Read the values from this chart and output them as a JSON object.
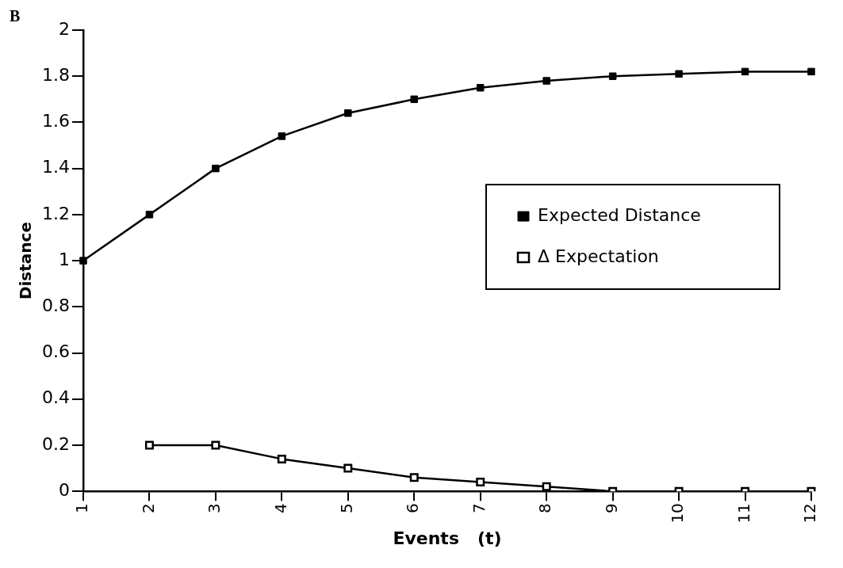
{
  "chart_data": {
    "type": "line",
    "xlabel": "Events   (t)",
    "ylabel": "Distance",
    "annotations": [
      "B"
    ],
    "categories": [
      "1",
      "2",
      "3",
      "4",
      "5",
      "6",
      "7",
      "8",
      "9",
      "10",
      "11",
      "12"
    ],
    "series": [
      {
        "name": "Expected Distance",
        "color": "#000000",
        "marker": "square",
        "values": [
          1.0,
          1.2,
          1.4,
          1.54,
          1.64,
          1.7,
          1.75,
          1.78,
          1.8,
          1.81,
          1.82,
          1.82
        ]
      },
      {
        "name": "Δ Expectation",
        "color": "#000000",
        "marker": "square",
        "values": [
          null,
          0.2,
          0.2,
          0.14,
          0.1,
          0.06,
          0.04,
          0.02,
          0,
          0,
          0,
          0
        ]
      }
    ],
    "ylim": [
      0,
      2
    ],
    "yticks": [
      0,
      0.2,
      0.4,
      0.6,
      0.8,
      1,
      1.2,
      1.4,
      1.6,
      1.8,
      2
    ],
    "grid": false,
    "legend": "right",
    "line_style": "solid"
  }
}
